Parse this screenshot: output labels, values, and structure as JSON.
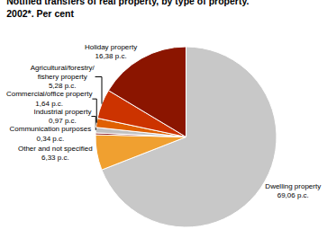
{
  "chart_data": {
    "type": "pie",
    "title": "Notified transfers of real property, by type of property.",
    "subtitle": "2002*. Per cent",
    "categories": [
      "Dwelling property",
      "Other and not specified",
      "Communication purposes",
      "Industrial property",
      "Commercial/office property",
      "Agricultural/forestry/\nfishery property",
      "Holiday property"
    ],
    "values": [
      69.06,
      6.33,
      0.34,
      0.97,
      1.64,
      5.28,
      16.38
    ],
    "value_labels": [
      "69,06 p.c.",
      "6,33 p.c.",
      "0,34 p.c.",
      "0,97 p.c.",
      "1,64 p.c.",
      "5,28 p.c.",
      "16,38 p.c."
    ],
    "colors": [
      "#c8c8c8",
      "#f0a030",
      "#800000",
      "#c0c0c0",
      "#e06000",
      "#cc3300",
      "#8b1500"
    ],
    "data_labels": true
  }
}
